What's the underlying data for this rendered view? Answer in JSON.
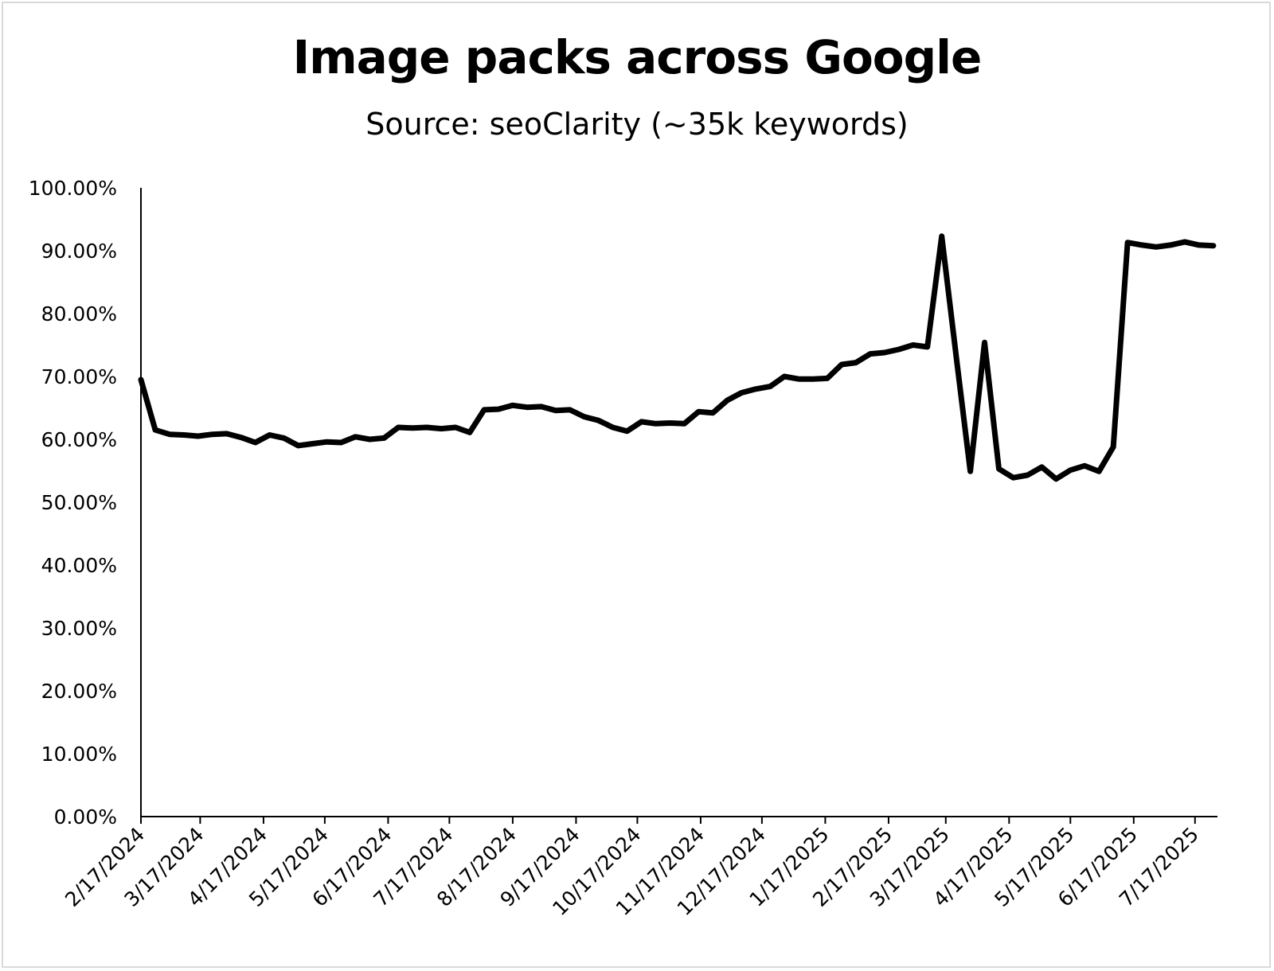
{
  "chart_data": {
    "type": "line",
    "title": "Image packs across Google",
    "subtitle": "Source: seoClarity (~35k keywords)",
    "xlabel": "",
    "ylabel": "",
    "ylim": [
      0,
      1
    ],
    "grid": false,
    "legend": "none",
    "line_color": "#000000",
    "y_ticks": [
      "0.00%",
      "10.00%",
      "20.00%",
      "30.00%",
      "40.00%",
      "50.00%",
      "60.00%",
      "70.00%",
      "80.00%",
      "90.00%",
      "100.00%"
    ],
    "x_tick_labels": [
      "2/17/2024",
      "3/17/2024",
      "4/17/2024",
      "5/17/2024",
      "6/17/2024",
      "7/17/2024",
      "8/17/2024",
      "9/17/2024",
      "10/17/2024",
      "11/17/2024",
      "12/17/2024",
      "1/17/2025",
      "2/17/2025",
      "3/17/2025",
      "4/17/2025",
      "5/17/2025",
      "6/17/2025",
      "7/17/2025"
    ],
    "x_range": [
      "2024-02-17",
      "2025-07-28"
    ],
    "series": [
      {
        "x": [
          "2024-02-17",
          "2024-02-24",
          "2024-03-02",
          "2024-03-09",
          "2024-03-16",
          "2024-03-23",
          "2024-03-30",
          "2024-04-06",
          "2024-04-13",
          "2024-04-20",
          "2024-04-27",
          "2024-05-04",
          "2024-05-11",
          "2024-05-18",
          "2024-05-25",
          "2024-06-01",
          "2024-06-08",
          "2024-06-15",
          "2024-06-22",
          "2024-06-29",
          "2024-07-06",
          "2024-07-13",
          "2024-07-20",
          "2024-07-27",
          "2024-08-03",
          "2024-08-10",
          "2024-08-17",
          "2024-08-24",
          "2024-08-31",
          "2024-09-07",
          "2024-09-14",
          "2024-09-21",
          "2024-09-28",
          "2024-10-05",
          "2024-10-12",
          "2024-10-19",
          "2024-10-26",
          "2024-11-02",
          "2024-11-09",
          "2024-11-16",
          "2024-11-23",
          "2024-11-30",
          "2024-12-07",
          "2024-12-14",
          "2024-12-21",
          "2024-12-28",
          "2025-01-04",
          "2025-01-11",
          "2025-01-18",
          "2025-01-25",
          "2025-02-01",
          "2025-02-08",
          "2025-02-15",
          "2025-02-22",
          "2025-03-01",
          "2025-03-08",
          "2025-03-15",
          "2025-03-22",
          "2025-03-29",
          "2025-04-05",
          "2025-04-12",
          "2025-04-19",
          "2025-04-26",
          "2025-05-03",
          "2025-05-10",
          "2025-05-17",
          "2025-05-24",
          "2025-05-31",
          "2025-06-07",
          "2025-06-14",
          "2025-06-21",
          "2025-06-28",
          "2025-07-05",
          "2025-07-12",
          "2025-07-19",
          "2025-07-26"
        ],
        "values": [
          0.695,
          0.615,
          0.608,
          0.607,
          0.605,
          0.608,
          0.609,
          0.603,
          0.595,
          0.607,
          0.602,
          0.59,
          0.593,
          0.596,
          0.595,
          0.604,
          0.6,
          0.602,
          0.619,
          0.618,
          0.619,
          0.617,
          0.619,
          0.611,
          0.647,
          0.648,
          0.654,
          0.651,
          0.652,
          0.646,
          0.647,
          0.636,
          0.63,
          0.619,
          0.613,
          0.628,
          0.625,
          0.626,
          0.625,
          0.644,
          0.642,
          0.662,
          0.674,
          0.68,
          0.684,
          0.7,
          0.696,
          0.696,
          0.697,
          0.719,
          0.722,
          0.736,
          0.738,
          0.743,
          0.75,
          0.747,
          0.923,
          0.735,
          0.549,
          0.754,
          0.553,
          0.539,
          0.543,
          0.556,
          0.537,
          0.551,
          0.558,
          0.549,
          0.588,
          0.913,
          0.909,
          0.906,
          0.909,
          0.914,
          0.909,
          0.908
        ]
      }
    ]
  }
}
